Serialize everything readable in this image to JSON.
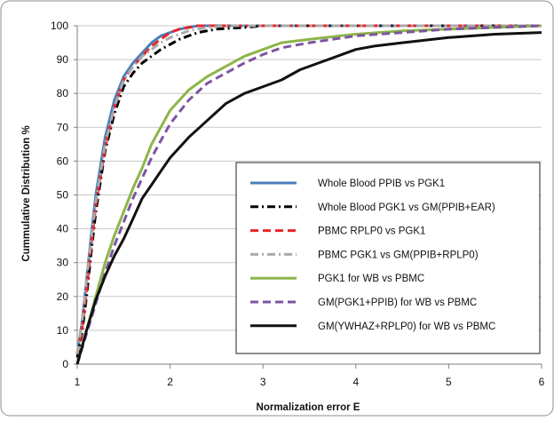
{
  "chart_data": {
    "type": "line",
    "title": "",
    "xlabel": "Normalization error E",
    "ylabel": "Cummulative Distribution %",
    "xlim": [
      1,
      6
    ],
    "ylim": [
      0,
      100
    ],
    "xticks": [
      1,
      2,
      3,
      4,
      5,
      6
    ],
    "yticks": [
      0,
      10,
      20,
      30,
      40,
      50,
      60,
      70,
      80,
      90,
      100
    ],
    "grid": "horizontal",
    "legend_position": "right-center",
    "series": [
      {
        "name": "Whole Blood PPIB vs PGK1",
        "color": "#4a7ebb",
        "dash": "solid",
        "x": [
          1.0,
          1.05,
          1.1,
          1.15,
          1.2,
          1.3,
          1.4,
          1.5,
          1.6,
          1.7,
          1.8,
          1.9,
          2.0,
          2.1,
          2.2,
          2.3,
          2.5,
          3.0,
          6.0
        ],
        "y": [
          3,
          12,
          25,
          38,
          50,
          67,
          78,
          85,
          89,
          92,
          95,
          97,
          98,
          99,
          99.5,
          100,
          100,
          100,
          100
        ]
      },
      {
        "name": "Whole Blood PGK1 vs GM(PPIB+EAR)",
        "color": "#000000",
        "dash": "dashdot",
        "x": [
          1.0,
          1.05,
          1.1,
          1.15,
          1.2,
          1.3,
          1.4,
          1.5,
          1.6,
          1.7,
          1.8,
          1.9,
          2.0,
          2.1,
          2.2,
          2.3,
          2.5,
          2.8,
          3.0,
          3.5,
          6.0
        ],
        "y": [
          2,
          9,
          20,
          33,
          45,
          63,
          74,
          82,
          86,
          89,
          91,
          93,
          94.5,
          96,
          97,
          98,
          99,
          99.5,
          100,
          100,
          100
        ]
      },
      {
        "name": "PBMC RPLP0 vs PGK1",
        "color": "#e8262b",
        "dash": "dash",
        "x": [
          1.0,
          1.05,
          1.1,
          1.15,
          1.2,
          1.3,
          1.4,
          1.5,
          1.6,
          1.7,
          1.8,
          1.9,
          2.0,
          2.1,
          2.2,
          2.3,
          2.5,
          3.0,
          6.0
        ],
        "y": [
          3,
          10,
          22,
          35,
          47,
          64,
          76,
          84,
          88,
          91,
          94,
          96,
          98,
          99,
          99.5,
          100,
          100,
          100,
          100
        ]
      },
      {
        "name": "PBMC PGK1 vs GM(PPIB+RPLP0)",
        "color": "#aaaaaa",
        "dash": "dashdot",
        "x": [
          1.0,
          1.05,
          1.1,
          1.15,
          1.2,
          1.3,
          1.4,
          1.5,
          1.6,
          1.7,
          1.8,
          1.9,
          2.0,
          2.1,
          2.2,
          2.3,
          2.4,
          2.6,
          3.0,
          6.0
        ],
        "y": [
          3,
          12,
          25,
          37,
          48,
          65,
          76,
          84,
          88,
          91,
          93,
          95,
          96.5,
          97.5,
          98.5,
          99,
          99.5,
          100,
          100,
          100
        ]
      },
      {
        "name": "PGK1 for WB vs PBMC",
        "color": "#8db54a",
        "dash": "solid",
        "x": [
          1.0,
          1.1,
          1.2,
          1.3,
          1.4,
          1.5,
          1.6,
          1.7,
          1.8,
          1.9,
          2.0,
          2.2,
          2.4,
          2.6,
          2.8,
          3.0,
          3.2,
          3.5,
          4.0,
          4.5,
          5.0,
          5.5,
          6.0
        ],
        "y": [
          0,
          10,
          20,
          30,
          38,
          45,
          52,
          58,
          65,
          70,
          75,
          81,
          85,
          88,
          91,
          93,
          95,
          96,
          97.5,
          98.5,
          99,
          99.5,
          100
        ]
      },
      {
        "name": "GM(PGK1+PPIB) for WB vs PBMC",
        "color": "#7d55a0",
        "dash": "dash",
        "x": [
          1.0,
          1.1,
          1.2,
          1.3,
          1.4,
          1.5,
          1.6,
          1.7,
          1.8,
          1.9,
          2.0,
          2.2,
          2.4,
          2.6,
          2.8,
          3.0,
          3.2,
          3.5,
          4.0,
          4.5,
          5.0,
          5.5,
          6.0
        ],
        "y": [
          0,
          9,
          18,
          27,
          35,
          42,
          49,
          55,
          61,
          66,
          71,
          78,
          83,
          86,
          89,
          91.5,
          93.5,
          95,
          97,
          98,
          99,
          99.5,
          100
        ]
      },
      {
        "name": "GM(YWHAZ+RPLP0) for WB vs PBMC",
        "color": "#111111",
        "dash": "solid",
        "x": [
          1.0,
          1.1,
          1.2,
          1.3,
          1.4,
          1.5,
          1.6,
          1.7,
          1.8,
          1.9,
          2.0,
          2.2,
          2.4,
          2.6,
          2.8,
          3.0,
          3.2,
          3.4,
          3.6,
          3.8,
          4.0,
          4.2,
          4.5,
          5.0,
          5.5,
          6.0
        ],
        "y": [
          0,
          10,
          19,
          26,
          32,
          37,
          43,
          49,
          53,
          57,
          61,
          67,
          72,
          77,
          80,
          82,
          84,
          87,
          89,
          91,
          93,
          94,
          95,
          96.5,
          97.5,
          98
        ]
      }
    ]
  }
}
